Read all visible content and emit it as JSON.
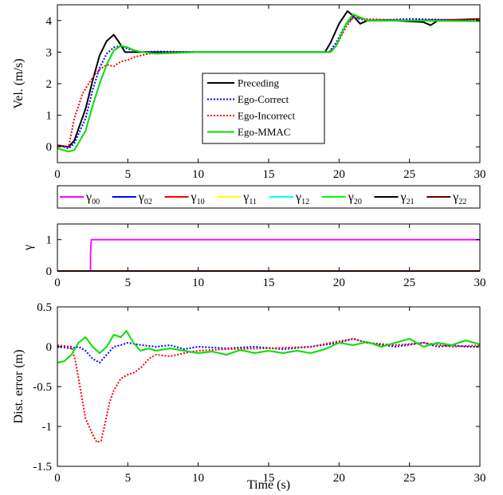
{
  "chart_data": [
    {
      "type": "line",
      "ylabel": "Vel. (m/s)",
      "xlim": [
        0,
        30
      ],
      "ylim": [
        -0.5,
        4.5
      ],
      "xticks": [
        0,
        5,
        10,
        15,
        20,
        25,
        30
      ],
      "yticks": [
        0,
        1,
        2,
        3,
        4
      ],
      "grid": false,
      "legend_position": "center",
      "series": [
        {
          "name": "Preceding",
          "color": "#000000",
          "style": "solid",
          "x": [
            0,
            0.8,
            1.2,
            2.0,
            2.5,
            3.0,
            3.5,
            4.0,
            4.4,
            4.8,
            5.5,
            7,
            10,
            15,
            19,
            19.4,
            20,
            20.6,
            21.0,
            21.5,
            22,
            24,
            26,
            26.5,
            27,
            30
          ],
          "y": [
            0.05,
            0.0,
            0.2,
            1.2,
            2.1,
            2.9,
            3.35,
            3.55,
            3.3,
            3.0,
            3.0,
            3.0,
            3.0,
            3.0,
            3.0,
            3.3,
            3.9,
            4.3,
            4.15,
            3.9,
            4.0,
            4.0,
            3.95,
            3.85,
            4.0,
            4.05
          ]
        },
        {
          "name": "Ego-Correct",
          "color": "#0000ff",
          "style": "dotted",
          "x": [
            0,
            0.8,
            1.2,
            2.0,
            2.5,
            3.0,
            3.5,
            4.0,
            4.5,
            5.0,
            6.0,
            7,
            10,
            15,
            19.3,
            19.8,
            20.5,
            21.0,
            21.5,
            22,
            25,
            30
          ],
          "y": [
            0.05,
            -0.05,
            0.1,
            0.9,
            1.8,
            2.5,
            2.95,
            3.15,
            3.2,
            3.1,
            3.0,
            3.02,
            3.0,
            3.0,
            3.0,
            3.3,
            3.9,
            4.1,
            4.05,
            4.0,
            4.05,
            4.0
          ]
        },
        {
          "name": "Ego-Incorrect",
          "color": "#ff0000",
          "style": "dotted",
          "x": [
            0,
            0.8,
            1.2,
            1.8,
            2.5,
            3.0,
            3.5,
            4.0,
            4.5,
            5.0,
            5.5,
            6.5,
            8,
            10,
            15,
            19.3,
            19.8,
            20.5,
            21,
            22,
            25,
            30
          ],
          "y": [
            0.05,
            0.0,
            0.9,
            1.7,
            2.2,
            2.45,
            2.6,
            2.55,
            2.7,
            2.75,
            2.85,
            2.95,
            3.0,
            3.0,
            3.0,
            3.0,
            3.2,
            3.8,
            4.1,
            4.05,
            4.0,
            4.05
          ]
        },
        {
          "name": "Ego-MMAC",
          "color": "#00e000",
          "style": "solid",
          "x": [
            0,
            0.8,
            1.2,
            2.0,
            2.5,
            3.0,
            3.5,
            4.0,
            4.5,
            5.0,
            5.5,
            6.0,
            7,
            10,
            15,
            19.4,
            19.8,
            20.5,
            21.0,
            21.5,
            22,
            25,
            30
          ],
          "y": [
            -0.05,
            -0.15,
            -0.1,
            0.5,
            1.3,
            2.0,
            2.6,
            3.05,
            3.2,
            3.15,
            3.05,
            3.0,
            2.95,
            3.0,
            3.0,
            3.0,
            3.2,
            3.9,
            4.2,
            4.1,
            4.0,
            4.0,
            3.98
          ]
        }
      ]
    },
    {
      "type": "line",
      "ylabel": "γ",
      "xlim": [
        0,
        30
      ],
      "ylim": [
        0,
        1.5
      ],
      "xticks": [
        0,
        5,
        10,
        15,
        20,
        25,
        30
      ],
      "yticks": [
        0,
        1
      ],
      "grid": false,
      "legend_position": "top",
      "series": [
        {
          "name": "γ00",
          "color": "#ff00ff",
          "x": [
            0,
            2.35,
            2.35,
            2.4,
            30
          ],
          "y": [
            0,
            0,
            0.5,
            1,
            1
          ]
        },
        {
          "name": "γ02",
          "color": "#0000ff",
          "x": [
            0,
            30
          ],
          "y": [
            0,
            0
          ]
        },
        {
          "name": "γ10",
          "color": "#ff0000",
          "x": [
            0,
            30
          ],
          "y": [
            0,
            0
          ]
        },
        {
          "name": "γ11",
          "color": "#ffff00",
          "x": [
            0,
            30
          ],
          "y": [
            0,
            0
          ]
        },
        {
          "name": "γ12",
          "color": "#00ffff",
          "x": [
            0,
            30
          ],
          "y": [
            0,
            0
          ]
        },
        {
          "name": "γ20",
          "color": "#00ff00",
          "x": [
            0,
            30
          ],
          "y": [
            0,
            0
          ]
        },
        {
          "name": "γ21",
          "color": "#000000",
          "x": [
            0,
            30
          ],
          "y": [
            0,
            0
          ]
        },
        {
          "name": "γ22",
          "color": "#600000",
          "x": [
            0,
            30
          ],
          "y": [
            0,
            0
          ]
        }
      ]
    },
    {
      "type": "line",
      "xlabel": "Time (s)",
      "ylabel": "Dist. error (m)",
      "xlim": [
        0,
        30
      ],
      "ylim": [
        -1.5,
        0.5
      ],
      "xticks": [
        0,
        5,
        10,
        15,
        20,
        25,
        30
      ],
      "yticks": [
        -1.5,
        -1,
        -0.5,
        0,
        0.5
      ],
      "ytick_labels": [
        "-1.5",
        "-1",
        "-0.5",
        "0",
        "0.5"
      ],
      "grid": false,
      "series": [
        {
          "name": "Ego-Correct",
          "color": "#0000ff",
          "style": "dotted",
          "x": [
            0,
            1,
            1.5,
            2,
            2.5,
            3,
            3.5,
            4,
            4.5,
            5,
            6,
            7,
            8,
            9,
            10,
            12,
            14,
            16,
            18,
            20,
            21,
            22,
            24,
            26,
            27,
            28,
            29,
            30
          ],
          "y": [
            0.0,
            -0.02,
            0.0,
            -0.05,
            -0.15,
            -0.2,
            -0.1,
            0.0,
            0.02,
            0.05,
            0.02,
            0.0,
            0.02,
            -0.03,
            0.0,
            -0.02,
            0.0,
            -0.03,
            0.0,
            0.05,
            0.1,
            0.05,
            0.0,
            0.05,
            0.0,
            0.02,
            0.0,
            0.0
          ]
        },
        {
          "name": "Ego-Incorrect",
          "color": "#ff0000",
          "style": "dotted",
          "x": [
            0,
            1,
            1.3,
            1.6,
            2.0,
            2.5,
            2.8,
            3.1,
            3.4,
            3.7,
            4.0,
            4.5,
            5.0,
            5.5,
            6.0,
            6.5,
            7.0,
            8.0,
            9.0,
            10,
            12,
            15,
            18,
            20,
            21,
            22,
            24,
            26,
            28,
            30
          ],
          "y": [
            0.02,
            0.0,
            -0.2,
            -0.5,
            -0.9,
            -1.1,
            -1.2,
            -1.18,
            -0.95,
            -0.7,
            -0.55,
            -0.4,
            -0.35,
            -0.32,
            -0.25,
            -0.15,
            -0.1,
            -0.12,
            -0.08,
            -0.05,
            -0.03,
            -0.02,
            0.0,
            0.07,
            0.1,
            0.05,
            0.02,
            0.05,
            0.0,
            0.02
          ]
        },
        {
          "name": "Ego-MMAC",
          "color": "#00e000",
          "style": "solid",
          "x": [
            0,
            0.5,
            1.0,
            1.5,
            2.0,
            2.5,
            3.0,
            3.5,
            4.0,
            4.5,
            4.9,
            5.4,
            5.9,
            6.5,
            7.0,
            8.0,
            9.0,
            10,
            11,
            12,
            13,
            14,
            15,
            16,
            17,
            18,
            19,
            20,
            21,
            22,
            23,
            24,
            25,
            26,
            27,
            28,
            29,
            30
          ],
          "y": [
            -0.2,
            -0.18,
            -0.1,
            0.05,
            0.12,
            0.0,
            -0.08,
            0.0,
            0.15,
            0.12,
            0.2,
            0.05,
            -0.05,
            -0.02,
            -0.05,
            -0.02,
            -0.05,
            -0.08,
            -0.06,
            -0.1,
            -0.04,
            -0.08,
            -0.05,
            -0.08,
            -0.05,
            -0.08,
            -0.03,
            0.05,
            0.02,
            0.06,
            0.0,
            0.05,
            0.1,
            0.0,
            0.05,
            0.02,
            0.08,
            0.03
          ]
        }
      ]
    }
  ]
}
